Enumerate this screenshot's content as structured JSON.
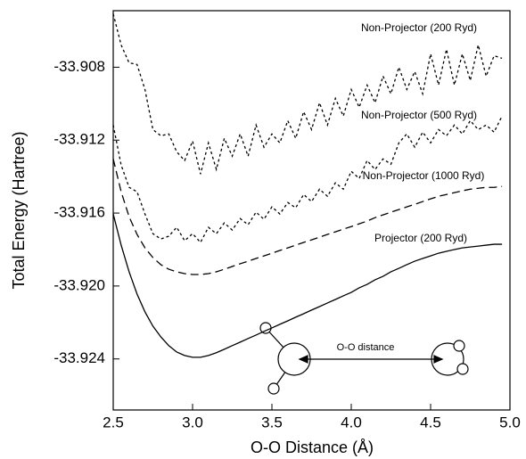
{
  "chart_data": {
    "type": "line",
    "x_label": "O-O Distance (Å)",
    "y_label": "Total Energy (Hartree)",
    "x": [
      2.5,
      2.55,
      2.6,
      2.65,
      2.7,
      2.75,
      2.8,
      2.85,
      2.9,
      2.95,
      3.0,
      3.05,
      3.1,
      3.15,
      3.2,
      3.25,
      3.3,
      3.35,
      3.4,
      3.45,
      3.5,
      3.55,
      3.6,
      3.65,
      3.7,
      3.75,
      3.8,
      3.85,
      3.9,
      3.95,
      4.0,
      4.05,
      4.1,
      4.15,
      4.2,
      4.25,
      4.3,
      4.35,
      4.4,
      4.45,
      4.5,
      4.55,
      4.6,
      4.65,
      4.7,
      4.75,
      4.8,
      4.85,
      4.9,
      4.95
    ],
    "series": [
      {
        "name": "Non-Projector (200 Ryd)",
        "color": "#000000",
        "line_style": "dotted",
        "values": [
          -33.90507,
          -33.90678,
          -33.90776,
          -33.90785,
          -33.90922,
          -33.91142,
          -33.91176,
          -33.91166,
          -33.91264,
          -33.91312,
          -33.91205,
          -33.91386,
          -33.91215,
          -33.91361,
          -33.9119,
          -33.91288,
          -33.91166,
          -33.91288,
          -33.91117,
          -33.91239,
          -33.91166,
          -33.91215,
          -33.91093,
          -33.9119,
          -33.91044,
          -33.91142,
          -33.90995,
          -33.91117,
          -33.90971,
          -33.91068,
          -33.90922,
          -33.9102,
          -33.90898,
          -33.90995,
          -33.90849,
          -33.90946,
          -33.908,
          -33.90922,
          -33.90824,
          -33.90946,
          -33.90727,
          -33.90898,
          -33.90702,
          -33.90898,
          -33.90727,
          -33.90873,
          -33.90678,
          -33.90849,
          -33.90737,
          -33.90751
        ]
      },
      {
        "name": "Non-Projector (500 Ryd)",
        "color": "#000000",
        "line_style": "dotted",
        "values": [
          -33.91117,
          -33.91337,
          -33.91459,
          -33.91483,
          -33.91605,
          -33.91713,
          -33.91742,
          -33.91727,
          -33.91678,
          -33.91752,
          -33.91713,
          -33.91761,
          -33.91678,
          -33.91713,
          -33.91654,
          -33.91693,
          -33.9163,
          -33.91664,
          -33.91595,
          -33.91634,
          -33.91566,
          -33.91605,
          -33.91542,
          -33.91571,
          -33.91498,
          -33.91537,
          -33.91469,
          -33.91508,
          -33.91434,
          -33.91469,
          -33.91371,
          -33.9141,
          -33.91312,
          -33.91361,
          -33.91303,
          -33.91332,
          -33.91215,
          -33.91166,
          -33.91239,
          -33.91156,
          -33.91215,
          -33.91142,
          -33.91176,
          -33.91117,
          -33.91166,
          -33.91093,
          -33.91142,
          -33.91117,
          -33.91156,
          -33.91068
        ]
      },
      {
        "name": "Non-Projector (1000 Ryd)",
        "color": "#000000",
        "line_style": "dashed",
        "values": [
          -33.91303,
          -33.91483,
          -33.9162,
          -33.91717,
          -33.91791,
          -33.91844,
          -33.91883,
          -33.91908,
          -33.91922,
          -33.91932,
          -33.91937,
          -33.91937,
          -33.91932,
          -33.91922,
          -33.91908,
          -33.91893,
          -33.91878,
          -33.91864,
          -33.91849,
          -33.91835,
          -33.9182,
          -33.91805,
          -33.91791,
          -33.91776,
          -33.91761,
          -33.91747,
          -33.91732,
          -33.91717,
          -33.91703,
          -33.91688,
          -33.91674,
          -33.91659,
          -33.91644,
          -33.91625,
          -33.9161,
          -33.91595,
          -33.91581,
          -33.91566,
          -33.91552,
          -33.91537,
          -33.91522,
          -33.91508,
          -33.91498,
          -33.91488,
          -33.91478,
          -33.91469,
          -33.91464,
          -33.91459,
          -33.91459,
          -33.91454
        ]
      },
      {
        "name": "Projector (200 Ryd)",
        "color": "#000000",
        "line_style": "solid",
        "values": [
          -33.91605,
          -33.91776,
          -33.91922,
          -33.92044,
          -33.92142,
          -33.9222,
          -33.92279,
          -33.92327,
          -33.92362,
          -33.92381,
          -33.92391,
          -33.92391,
          -33.92381,
          -33.92366,
          -33.92347,
          -33.92327,
          -33.92308,
          -33.92288,
          -33.92269,
          -33.92249,
          -33.9223,
          -33.9221,
          -33.92191,
          -33.92171,
          -33.92152,
          -33.92132,
          -33.92113,
          -33.92093,
          -33.92074,
          -33.92054,
          -33.92035,
          -33.9201,
          -33.91991,
          -33.91966,
          -33.91947,
          -33.91922,
          -33.91903,
          -33.91883,
          -33.91864,
          -33.91849,
          -33.91835,
          -33.9182,
          -33.9181,
          -33.918,
          -33.91791,
          -33.91786,
          -33.91781,
          -33.91776,
          -33.91771,
          -33.91771
        ]
      }
    ],
    "xlim": [
      2.5,
      5.0
    ],
    "xticks": [
      2.5,
      {
        "value": 3,
        "label": "3.0"
      },
      3.5,
      {
        "value": 4,
        "label": "4.0"
      },
      4.5,
      {
        "value": 5,
        "label": "5.0"
      }
    ],
    "ylim": [
      -33.9268,
      -33.9049
    ],
    "yticks": [
      -33.908,
      -33.912,
      -33.916,
      {
        "value": -33.92,
        "label": "-33.920"
      },
      -33.924
    ],
    "diagram_label": "O-O distance"
  }
}
